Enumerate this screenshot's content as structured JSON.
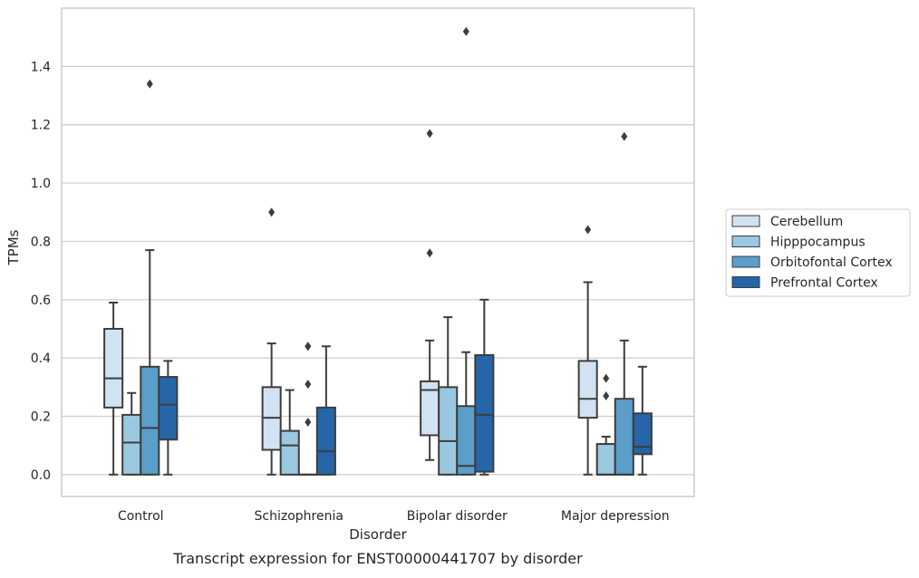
{
  "chart_data": {
    "type": "box",
    "title": "",
    "caption": "Transcript expression for ENST00000441707 by disorder",
    "xlabel": "Disorder",
    "ylabel": "TPMs",
    "ylim": [
      -0.075,
      1.6
    ],
    "yticks": [
      0.0,
      0.2,
      0.4,
      0.6,
      0.8,
      1.0,
      1.2,
      1.4
    ],
    "grid": true,
    "legend_placement": "right",
    "categories": [
      "Control",
      "Schizophrenia",
      "Bipolar disorder",
      "Major depression"
    ],
    "series": [
      {
        "name": "Cerebellum",
        "color": "#d1e2f2",
        "boxes": [
          {
            "whisker_low": 0.0,
            "q1": 0.23,
            "median": 0.33,
            "q3": 0.5,
            "whisker_high": 0.59,
            "outliers": []
          },
          {
            "whisker_low": 0.0,
            "q1": 0.085,
            "median": 0.195,
            "q3": 0.3,
            "whisker_high": 0.45,
            "outliers": [
              0.9
            ]
          },
          {
            "whisker_low": 0.05,
            "q1": 0.135,
            "median": 0.29,
            "q3": 0.32,
            "whisker_high": 0.46,
            "outliers": [
              0.76,
              1.17
            ]
          },
          {
            "whisker_low": 0.0,
            "q1": 0.195,
            "median": 0.26,
            "q3": 0.39,
            "whisker_high": 0.66,
            "outliers": [
              0.84
            ]
          }
        ]
      },
      {
        "name": "Hipppocampus",
        "color": "#9ac8e0",
        "boxes": [
          {
            "whisker_low": 0.0,
            "q1": 0.0,
            "median": 0.11,
            "q3": 0.205,
            "whisker_high": 0.28,
            "outliers": []
          },
          {
            "whisker_low": 0.0,
            "q1": 0.0,
            "median": 0.1,
            "q3": 0.15,
            "whisker_high": 0.29,
            "outliers": []
          },
          {
            "whisker_low": 0.0,
            "q1": 0.0,
            "median": 0.115,
            "q3": 0.3,
            "whisker_high": 0.54,
            "outliers": []
          },
          {
            "whisker_low": 0.0,
            "q1": 0.0,
            "median": 0.0,
            "q3": 0.105,
            "whisker_high": 0.13,
            "outliers": [
              0.27,
              0.33
            ]
          }
        ]
      },
      {
        "name": "Orbitofontal Cortex",
        "color": "#5a9ec9",
        "boxes": [
          {
            "whisker_low": 0.0,
            "q1": 0.0,
            "median": 0.16,
            "q3": 0.37,
            "whisker_high": 0.77,
            "outliers": [
              1.34
            ]
          },
          {
            "whisker_low": 0.0,
            "q1": 0.0,
            "median": 0.0,
            "q3": 0.0,
            "whisker_high": 0.0,
            "outliers": [
              0.18,
              0.31,
              0.44,
              0.44
            ]
          },
          {
            "whisker_low": 0.0,
            "q1": 0.0,
            "median": 0.03,
            "q3": 0.235,
            "whisker_high": 0.42,
            "outliers": [
              1.52
            ]
          },
          {
            "whisker_low": 0.0,
            "q1": 0.0,
            "median": 0.0,
            "q3": 0.26,
            "whisker_high": 0.46,
            "outliers": [
              1.16
            ]
          }
        ]
      },
      {
        "name": "Prefrontal Cortex",
        "color": "#2565a8",
        "boxes": [
          {
            "whisker_low": 0.0,
            "q1": 0.12,
            "median": 0.24,
            "q3": 0.335,
            "whisker_high": 0.39,
            "outliers": []
          },
          {
            "whisker_low": 0.0,
            "q1": 0.0,
            "median": 0.08,
            "q3": 0.23,
            "whisker_high": 0.44,
            "outliers": []
          },
          {
            "whisker_low": 0.0,
            "q1": 0.01,
            "median": 0.205,
            "q3": 0.41,
            "whisker_high": 0.6,
            "outliers": []
          },
          {
            "whisker_low": 0.0,
            "q1": 0.07,
            "median": 0.095,
            "q3": 0.21,
            "whisker_high": 0.37,
            "outliers": []
          }
        ]
      }
    ]
  }
}
